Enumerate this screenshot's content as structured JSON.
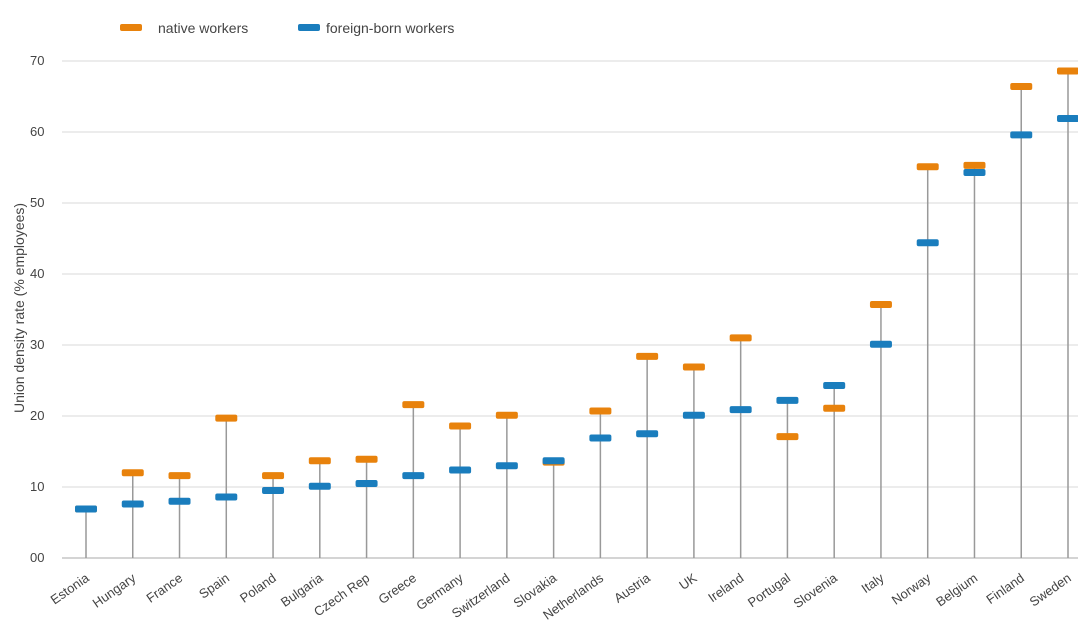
{
  "chart_data": {
    "type": "dot-range",
    "ylabel": "Union density rate (% employees)",
    "ylim": [
      0,
      70
    ],
    "y_ticks": [
      "00",
      "10",
      "20",
      "30",
      "40",
      "50",
      "60",
      "70"
    ],
    "grid": true,
    "legend_position": "top-left",
    "categories": [
      "Estonia",
      "Hungary",
      "France",
      "Spain",
      "Poland",
      "Bulgaria",
      "Czech Rep",
      "Greece",
      "Germany",
      "Switzerland",
      "Slovakia",
      "Netherlands",
      "Austria",
      "UK",
      "Ireland",
      "Portugal",
      "Slovenia",
      "Italy",
      "Norway",
      "Belgium",
      "Finland",
      "Sweden"
    ],
    "series": [
      {
        "name": "native workers",
        "color": "#E8820C",
        "values": [
          6.9,
          12.0,
          11.6,
          19.7,
          11.6,
          13.7,
          13.9,
          21.6,
          18.6,
          20.1,
          13.5,
          20.7,
          28.4,
          26.9,
          31.0,
          17.1,
          21.1,
          35.7,
          55.1,
          55.3,
          66.4,
          68.6
        ]
      },
      {
        "name": "foreign-born workers",
        "color": "#1A7DBD",
        "values": [
          6.9,
          7.6,
          8.0,
          8.6,
          9.5,
          10.1,
          10.5,
          11.6,
          12.4,
          13.0,
          13.7,
          16.9,
          17.5,
          20.1,
          20.9,
          22.2,
          24.3,
          30.1,
          44.4,
          54.3,
          59.6,
          61.9
        ]
      }
    ]
  }
}
